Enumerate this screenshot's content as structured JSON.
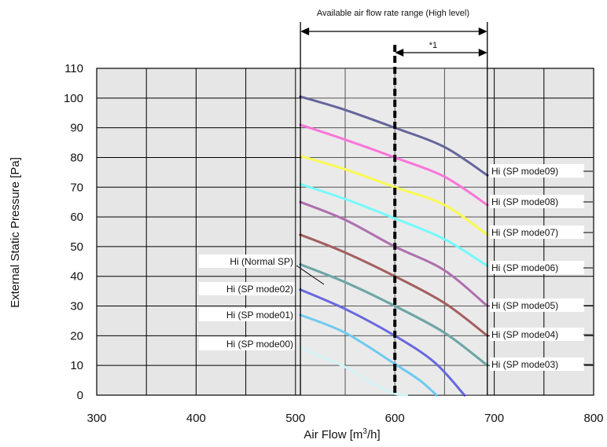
{
  "chart_data": {
    "type": "line",
    "xlabel": "Air Flow [m",
    "xlabel_sup": "3",
    "xlabel_tail": "/h]",
    "ylabel": "External Static Pressure [Pa]",
    "xlim": [
      300,
      800
    ],
    "ylim": [
      0,
      110
    ],
    "x_ticks": [
      "300",
      "400",
      "500",
      "600",
      "700",
      "800"
    ],
    "y_ticks": [
      "0",
      "10",
      "20",
      "30",
      "40",
      "50",
      "60",
      "70",
      "80",
      "90",
      "100",
      "110"
    ],
    "grid": true,
    "range_annotation": {
      "label": "Available air flow rate range (High level)",
      "from": 505,
      "to": 693
    },
    "rated_annotation": {
      "label": "*1",
      "x": 600,
      "to": 693
    },
    "series": [
      {
        "name": "Hi (SP mode09)",
        "color": "#1b1b6e",
        "x": [
          505,
          550,
          600,
          650,
          693
        ],
        "y": [
          100.5,
          96,
          90,
          83.5,
          74
        ]
      },
      {
        "name": "Hi (SP mode08)",
        "color": "#ff33cc",
        "x": [
          505,
          550,
          600,
          650,
          693
        ],
        "y": [
          91,
          86,
          80,
          73.5,
          64
        ]
      },
      {
        "name": "Hi (SP mode07)",
        "color": "#ffff00",
        "x": [
          505,
          550,
          600,
          650,
          693
        ],
        "y": [
          80.5,
          76,
          70,
          64,
          54
        ]
      },
      {
        "name": "Hi (SP mode06)",
        "color": "#33ffff",
        "x": [
          505,
          550,
          600,
          650,
          693
        ],
        "y": [
          71,
          66,
          59.5,
          52.5,
          43.5
        ]
      },
      {
        "name": "Hi (SP mode05)",
        "color": "#8b2a8b",
        "x": [
          505,
          550,
          600,
          650,
          693
        ],
        "y": [
          65,
          59,
          50,
          42,
          30
        ]
      },
      {
        "name": "Hi (SP mode04)",
        "color": "#7a1010",
        "x": [
          505,
          550,
          600,
          650,
          693
        ],
        "y": [
          54,
          48,
          40,
          31,
          20
        ]
      },
      {
        "name": "Hi (Normal SP)",
        "color": "#2a7f7f",
        "x": [
          505,
          550,
          600,
          650,
          693
        ],
        "y": [
          44,
          38,
          30,
          21,
          10
        ]
      },
      {
        "name": "Hi (SP mode03)",
        "color": "#2a7f7f",
        "x": [
          505,
          550,
          600,
          650,
          693
        ],
        "y": [
          44,
          38,
          30,
          21,
          10
        ]
      },
      {
        "name": "Hi (SP mode02)",
        "color": "#1f1fd6",
        "x": [
          505,
          550,
          600,
          640,
          670
        ],
        "y": [
          35.5,
          29,
          20,
          11,
          0
        ]
      },
      {
        "name": "Hi (SP mode01)",
        "color": "#29b6f0",
        "x": [
          505,
          550,
          600,
          625,
          642
        ],
        "y": [
          27,
          21,
          10.5,
          5,
          0
        ]
      },
      {
        "name": "Hi (SP mode00)",
        "color": "#c6f6f6",
        "x": [
          505,
          550,
          580,
          600,
          612
        ],
        "y": [
          16,
          9.5,
          3.5,
          0.5,
          0
        ]
      }
    ],
    "labels_right": [
      "Hi (SP mode09)",
      "Hi (SP mode08)",
      "Hi (SP mode07)",
      "Hi (SP mode06)",
      "Hi (SP mode05)",
      "Hi (SP mode04)",
      "Hi (SP mode03)"
    ],
    "labels_left": [
      "Hi (Normal SP)",
      "Hi (SP mode02)",
      "Hi (SP mode01)",
      "Hi (SP mode00)"
    ]
  }
}
